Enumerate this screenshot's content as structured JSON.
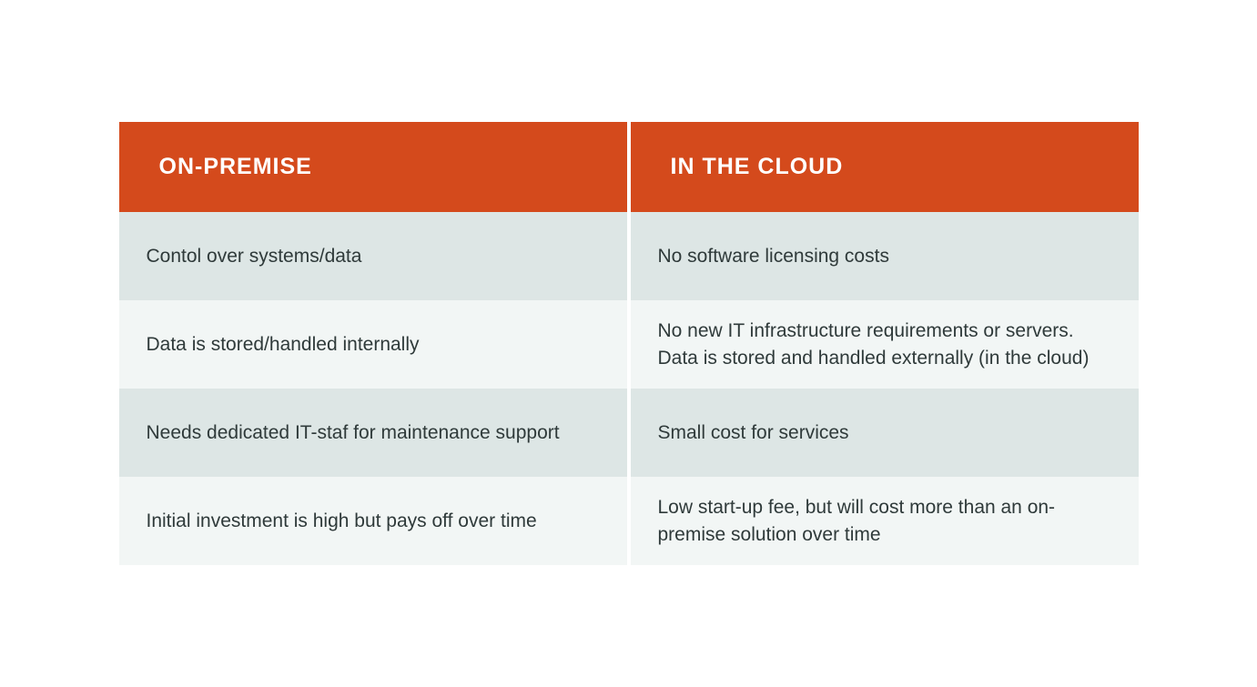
{
  "table": {
    "type": "table",
    "columns": [
      {
        "header": "ON-PREMISE"
      },
      {
        "header": "IN THE CLOUD"
      }
    ],
    "rows": [
      [
        "Contol over systems/data",
        "No software licensing costs"
      ],
      [
        "Data is stored/handled internally",
        "No new IT infrastructure  requirements or servers. Data is stored and handled externally (in the cloud)"
      ],
      [
        "Needs dedicated IT-staf for maintenance support",
        "Small cost for services"
      ],
      [
        "Initial investment is high but pays off over time",
        "Low start-up fee, but will cost more than an on-premise solution over time"
      ]
    ],
    "header_bg_color": "#d44a1c",
    "header_text_color": "#ffffff",
    "row_bg_even": "#dde6e5",
    "row_bg_odd": "#f2f6f5",
    "body_text_color": "#2f3a3a",
    "header_fontsize": 25,
    "body_fontsize": 21
  }
}
